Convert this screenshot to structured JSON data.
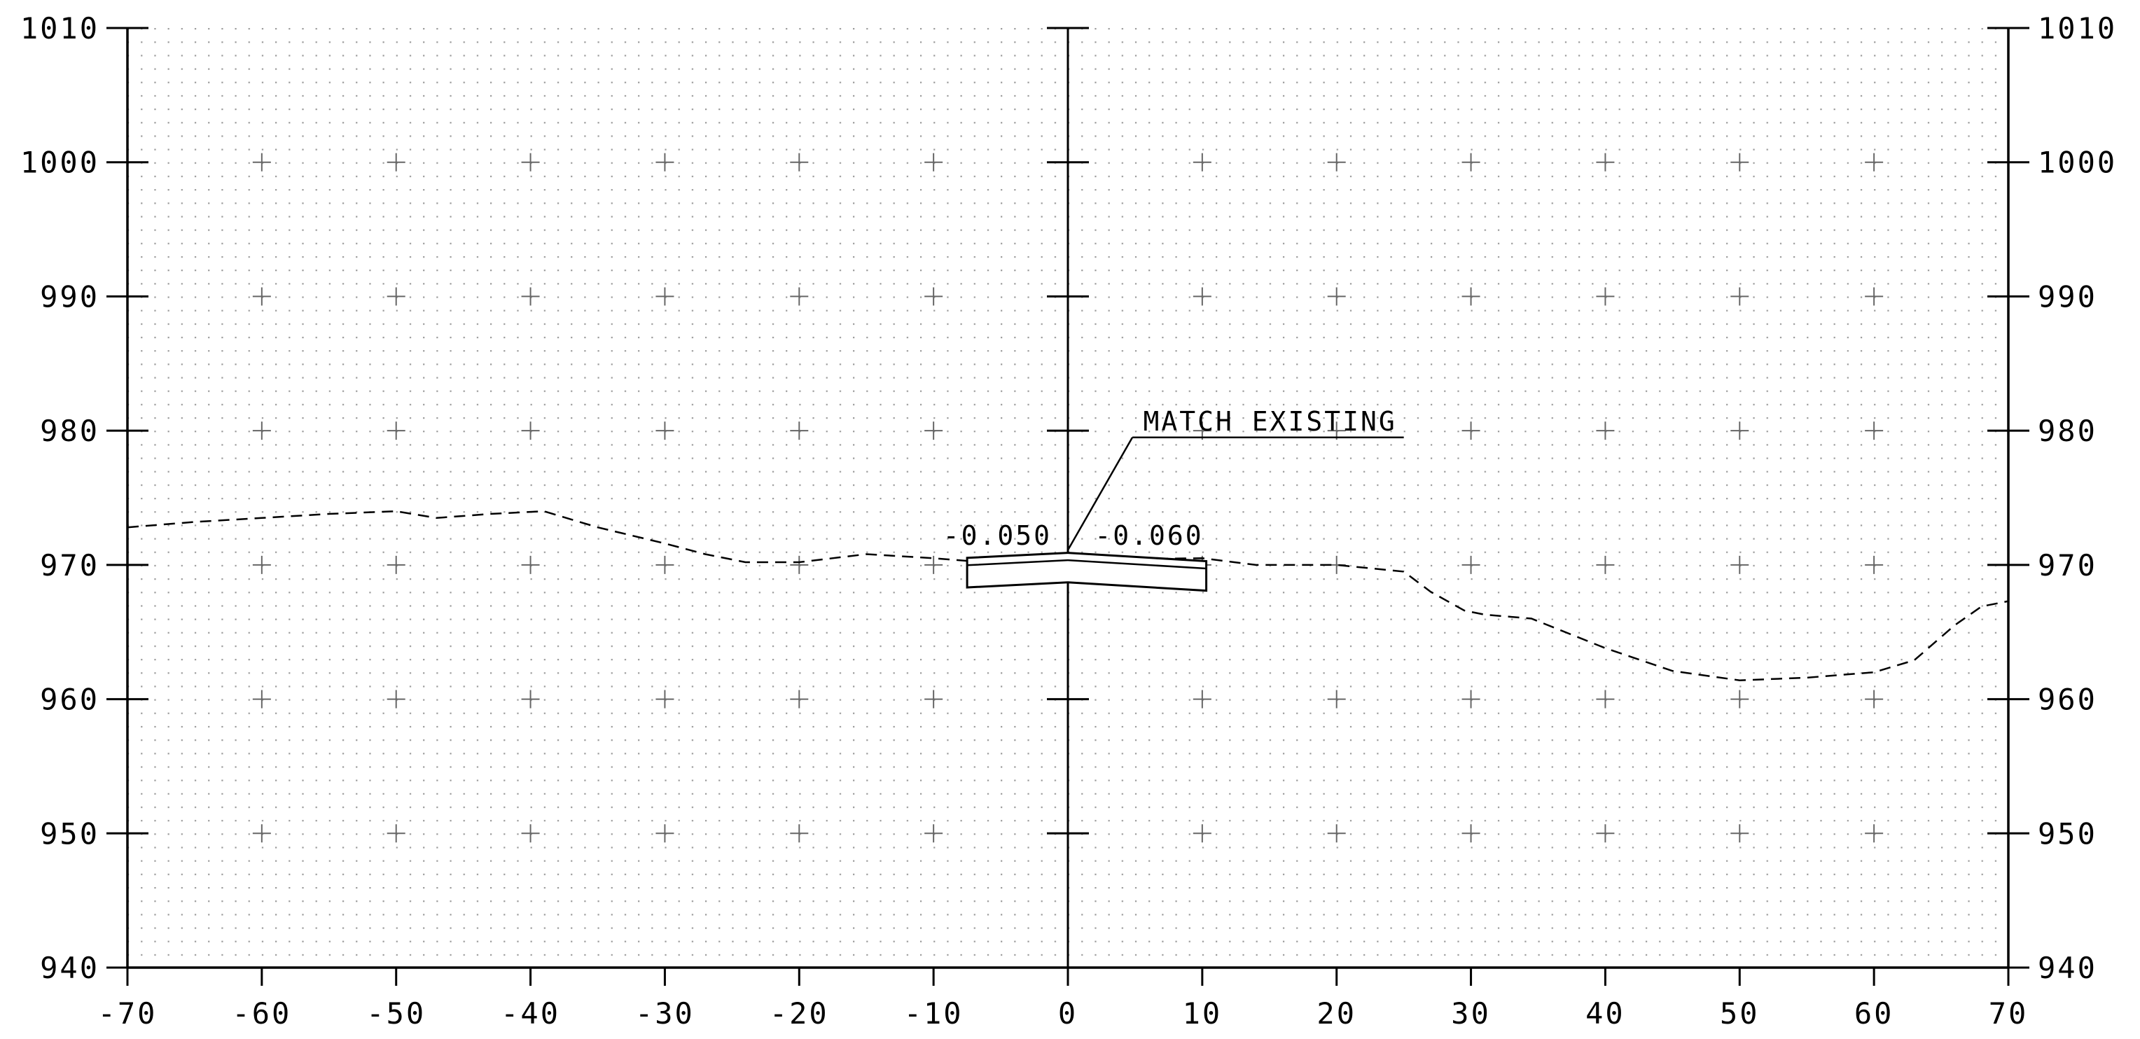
{
  "chart_data": {
    "type": "cross-section",
    "title": "",
    "xlabel": "",
    "ylabel": "",
    "xlim": [
      -70,
      70
    ],
    "ylim": [
      940,
      1010
    ],
    "x_ticks": [
      "-70",
      "-60",
      "-50",
      "-40",
      "-30",
      "-20",
      "-10",
      "0",
      "10",
      "20",
      "30",
      "40",
      "50",
      "60",
      "70"
    ],
    "y_ticks_left": [
      "1010",
      "1000",
      "990",
      "980",
      "970",
      "960",
      "950",
      "940"
    ],
    "y_ticks_right": [
      "1010",
      "1000",
      "990",
      "980",
      "970",
      "960",
      "950",
      "940"
    ],
    "grid": "dotted with crosshair markers",
    "series": [
      {
        "style": "dashed",
        "points": [
          [
            -70,
            972.8
          ],
          [
            -65,
            973.2
          ],
          [
            -60,
            973.5
          ],
          [
            -55,
            973.8
          ],
          [
            -50,
            974.0
          ],
          [
            -47,
            973.5
          ],
          [
            -43,
            973.8
          ],
          [
            -39,
            974.0
          ],
          [
            -35,
            972.8
          ],
          [
            -30,
            971.6
          ],
          [
            -27,
            970.8
          ],
          [
            -24,
            970.2
          ],
          [
            -20,
            970.2
          ],
          [
            -15,
            970.8
          ],
          [
            -10,
            970.5
          ],
          [
            -7.5,
            970.3
          ],
          [
            10,
            970.5
          ],
          [
            14,
            970.0
          ],
          [
            20,
            970.0
          ],
          [
            25,
            969.5
          ],
          [
            27,
            968.0
          ],
          [
            29.5,
            966.6
          ],
          [
            31,
            966.3
          ],
          [
            34.5,
            966.0
          ],
          [
            40,
            963.8
          ],
          [
            45,
            962.1
          ],
          [
            50,
            961.4
          ],
          [
            55,
            961.6
          ],
          [
            60,
            962.0
          ],
          [
            63,
            962.9
          ],
          [
            66,
            965.5
          ],
          [
            68,
            966.9
          ],
          [
            70,
            967.3
          ]
        ]
      }
    ],
    "pavement": {
      "left_slope": "-0.050",
      "right_slope": "-0.060",
      "x_left": -7.5,
      "x_right": 10.3,
      "crown_top": 970.9,
      "crown_inner": 970.35,
      "thickness": 2.2
    },
    "annotations": [
      {
        "text": "MATCH EXISTING"
      }
    ]
  }
}
